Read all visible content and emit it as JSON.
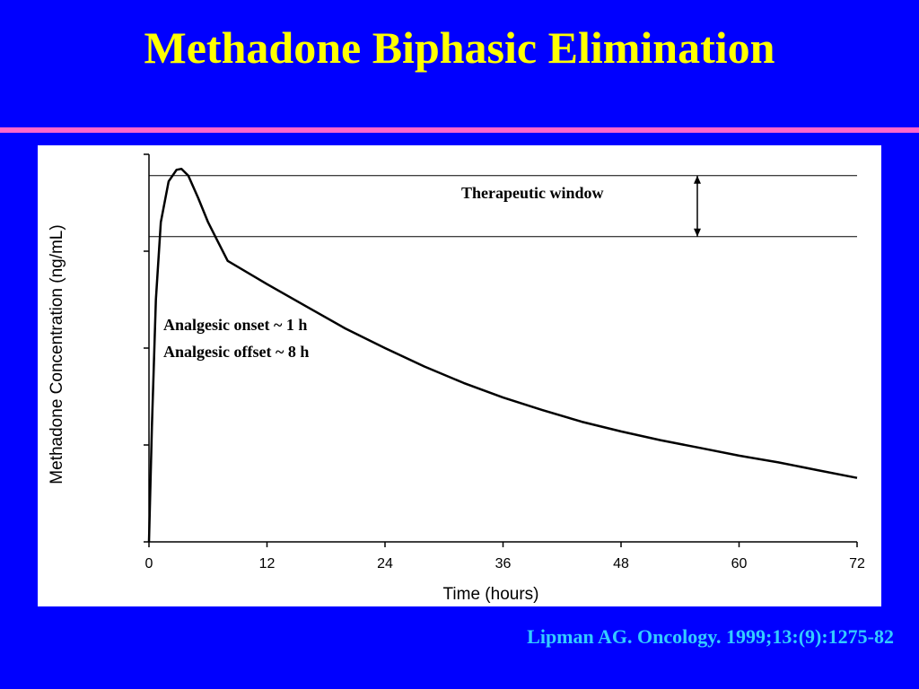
{
  "slide": {
    "title": "Methadone Biphasic Elimination",
    "citation": "Lipman AG. Oncology. 1999;13:(9):1275-82"
  },
  "colors": {
    "background": "#0000ff",
    "title": "#ffff00",
    "rule": "#ff66cc",
    "citation": "#33ccff",
    "chart_background": "#ffffff",
    "ink": "#000000"
  },
  "chart_data": {
    "type": "line",
    "title": "",
    "xlabel": "Time (hours)",
    "ylabel": "Methadone Concentration (ng/mL)",
    "xlim": [
      0,
      72
    ],
    "ylim": [
      0,
      4
    ],
    "x_ticks": [
      0,
      12,
      24,
      36,
      48,
      60,
      72
    ],
    "y_ticks": [
      0,
      1,
      2,
      3,
      4
    ],
    "y_tick_labels_shown": false,
    "grid": false,
    "legend": "none",
    "series": [
      {
        "x": [
          0,
          0.3,
          0.7,
          1.2,
          2,
          2.8,
          3.3,
          4,
          5,
          6,
          7,
          8,
          12,
          16,
          20,
          24,
          28,
          32,
          36,
          40,
          44,
          48,
          52,
          56,
          60,
          64,
          68,
          72
        ],
        "y": [
          0,
          1.2,
          2.5,
          3.3,
          3.72,
          3.84,
          3.85,
          3.78,
          3.55,
          3.3,
          3.1,
          2.9,
          2.66,
          2.43,
          2.2,
          2.0,
          1.81,
          1.64,
          1.49,
          1.36,
          1.24,
          1.14,
          1.05,
          0.97,
          0.89,
          0.82,
          0.74,
          0.66
        ]
      }
    ],
    "reference_lines": [
      {
        "y": 3.78
      },
      {
        "y": 3.15
      }
    ],
    "therapeutic_window_label": "Therapeutic window",
    "annotations": [
      "Analgesic onset ~  1 h",
      "Analgesic offset ~ 8 h"
    ]
  }
}
